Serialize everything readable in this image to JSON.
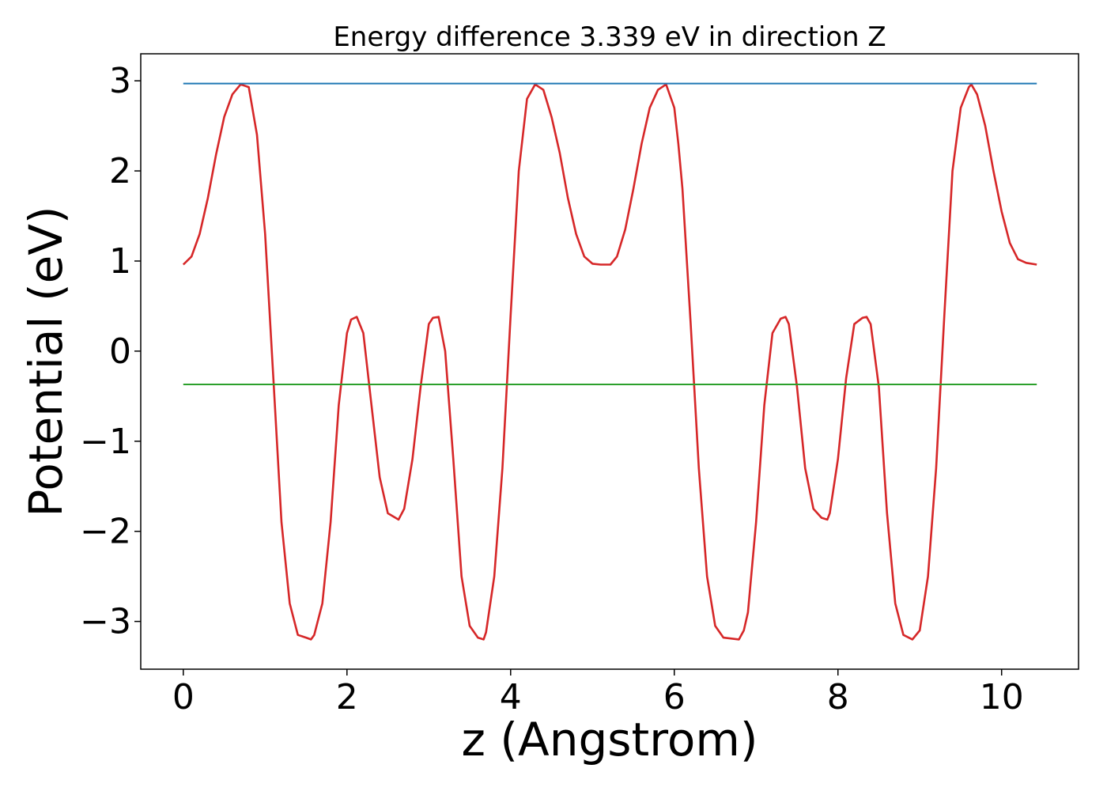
{
  "chart_data": {
    "type": "line",
    "title": "Energy difference 3.339 eV in direction Z",
    "xlabel": "z (Angstrom)",
    "ylabel": "Potential (eV)",
    "xlim": [
      -0.52,
      10.94
    ],
    "ylim": [
      -3.53,
      3.3
    ],
    "x_ticks": [
      0,
      2,
      4,
      6,
      8,
      10
    ],
    "x_tick_labels": [
      "0",
      "2",
      "4",
      "6",
      "8",
      "10"
    ],
    "y_ticks": [
      -3,
      -2,
      -1,
      0,
      1,
      2,
      3
    ],
    "y_tick_labels": [
      "−3",
      "−2",
      "−1",
      "0",
      "1",
      "2",
      "3"
    ],
    "grid": false,
    "legend": "none",
    "series": [
      {
        "color": "#d62728",
        "x": [
          0.0,
          0.1,
          0.2,
          0.3,
          0.4,
          0.5,
          0.6,
          0.7,
          0.8,
          0.9,
          1.0,
          1.1,
          1.2,
          1.3,
          1.4,
          1.5,
          1.56,
          1.6,
          1.7,
          1.8,
          1.9,
          2.0,
          2.05,
          2.12,
          2.2,
          2.3,
          2.4,
          2.5,
          2.63,
          2.7,
          2.8,
          2.9,
          3.0,
          3.05,
          3.12,
          3.2,
          3.3,
          3.4,
          3.5,
          3.6,
          3.67,
          3.7,
          3.8,
          3.9,
          4.0,
          4.1,
          4.2,
          4.3,
          4.4,
          4.5,
          4.6,
          4.7,
          4.8,
          4.9,
          5.0,
          5.1,
          5.22,
          5.3,
          5.4,
          5.5,
          5.6,
          5.7,
          5.8,
          5.9,
          6.0,
          6.05,
          6.1,
          6.2,
          6.3,
          6.4,
          6.5,
          6.6,
          6.7,
          6.79,
          6.85,
          6.9,
          7.0,
          7.1,
          7.2,
          7.3,
          7.36,
          7.4,
          7.5,
          7.6,
          7.7,
          7.8,
          7.87,
          7.9,
          8.0,
          8.1,
          8.2,
          8.3,
          8.35,
          8.4,
          8.5,
          8.6,
          8.7,
          8.8,
          8.91,
          9.0,
          9.1,
          9.2,
          9.3,
          9.4,
          9.5,
          9.6,
          9.63,
          9.7,
          9.8,
          9.9,
          10.0,
          10.1,
          10.2,
          10.3,
          10.43
        ],
        "y": [
          0.96,
          1.05,
          1.3,
          1.7,
          2.18,
          2.6,
          2.85,
          2.96,
          2.93,
          2.4,
          1.3,
          -0.3,
          -1.9,
          -2.8,
          -3.15,
          -3.18,
          -3.2,
          -3.15,
          -2.8,
          -1.9,
          -0.6,
          0.2,
          0.35,
          0.38,
          0.2,
          -0.6,
          -1.4,
          -1.8,
          -1.87,
          -1.75,
          -1.2,
          -0.4,
          0.3,
          0.37,
          0.38,
          0.0,
          -1.2,
          -2.5,
          -3.05,
          -3.18,
          -3.2,
          -3.12,
          -2.5,
          -1.3,
          0.4,
          2.0,
          2.8,
          2.96,
          2.9,
          2.6,
          2.2,
          1.7,
          1.3,
          1.05,
          0.97,
          0.96,
          0.96,
          1.05,
          1.35,
          1.8,
          2.3,
          2.7,
          2.9,
          2.96,
          2.7,
          2.3,
          1.8,
          0.3,
          -1.3,
          -2.5,
          -3.05,
          -3.18,
          -3.19,
          -3.2,
          -3.1,
          -2.9,
          -1.9,
          -0.6,
          0.2,
          0.36,
          0.38,
          0.3,
          -0.4,
          -1.3,
          -1.75,
          -1.85,
          -1.87,
          -1.8,
          -1.2,
          -0.3,
          0.3,
          0.37,
          0.38,
          0.3,
          -0.4,
          -1.8,
          -2.8,
          -3.15,
          -3.2,
          -3.1,
          -2.5,
          -1.3,
          0.4,
          2.0,
          2.7,
          2.93,
          2.96,
          2.85,
          2.5,
          2.0,
          1.55,
          1.2,
          1.02,
          0.98,
          0.96
        ]
      },
      {
        "color": "#1f77b4",
        "x": [
          0.0,
          10.43
        ],
        "y": [
          2.97,
          2.97
        ]
      },
      {
        "color": "#2ca02c",
        "x": [
          0.0,
          10.43
        ],
        "y": [
          -0.37,
          -0.37
        ]
      }
    ]
  }
}
